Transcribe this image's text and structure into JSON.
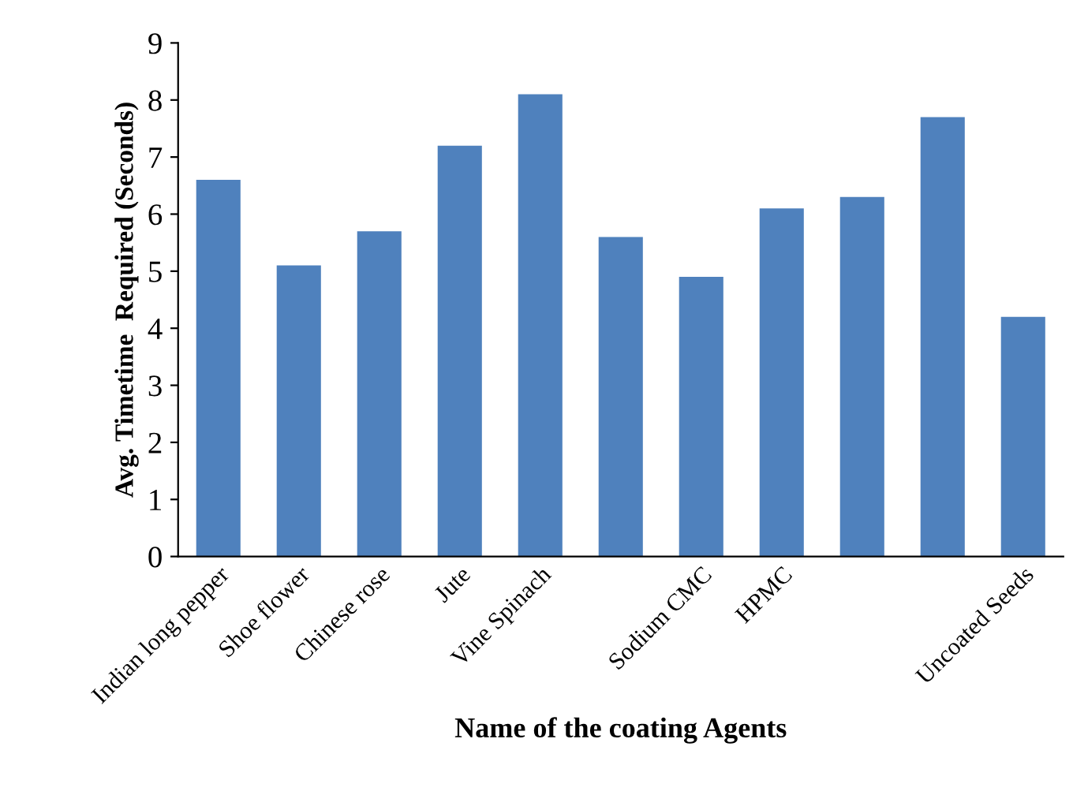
{
  "chart_data": {
    "type": "bar",
    "xlabel": "Name of the coating Agents",
    "ylabel": "Avg. Timetime  Required (Seconds)",
    "categories": [
      "Indian long pepper",
      "Shoe flower",
      "Chinese rose",
      "Jute",
      "Vine Spinach",
      null,
      "Sodium CMC",
      "HPMC",
      null,
      null,
      "Uncoated Seeds"
    ],
    "values": [
      6.6,
      5.1,
      5.7,
      7.2,
      8.1,
      5.6,
      4.9,
      6.1,
      6.3,
      7.7,
      4.2
    ],
    "color": "#4f81bd",
    "ylim": [
      0,
      9
    ],
    "yticks": [
      0,
      1,
      2,
      3,
      4,
      5,
      6,
      7,
      8,
      9
    ],
    "grid": false,
    "legend": false
  }
}
